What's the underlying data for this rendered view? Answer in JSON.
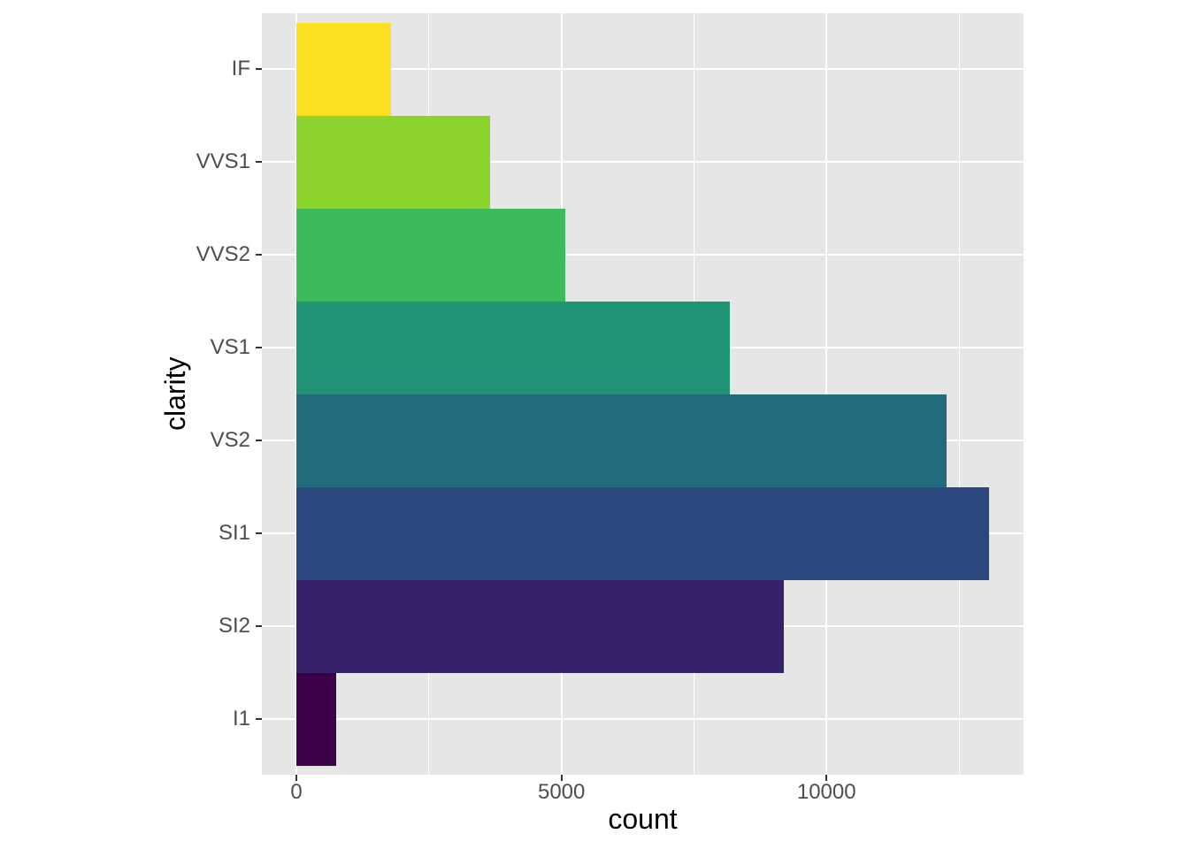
{
  "chart_data": {
    "type": "bar",
    "orientation": "horizontal",
    "title": "",
    "xlabel": "count",
    "ylabel": "clarity",
    "categories": [
      "IF",
      "VVS1",
      "VVS2",
      "VS1",
      "VS2",
      "SI1",
      "SI2",
      "I1"
    ],
    "values": [
      1790,
      3655,
      5066,
      8171,
      12258,
      13065,
      9194,
      741
    ],
    "bar_colors": [
      "#FBE122",
      "#8CD32C",
      "#3EB95B",
      "#1F9374",
      "#216C7C",
      "#2A487D",
      "#36216B",
      "#3B0248"
    ],
    "x_major_ticks": [
      0,
      5000,
      10000
    ],
    "x_tick_labels": [
      "0",
      "5000",
      "10000"
    ],
    "x_minor_ticks": [
      2500,
      7500,
      12500
    ],
    "xlim": [
      -653,
      13718
    ],
    "legend": "none",
    "grid": "on",
    "panel_bg": "#E6E6E6",
    "gridline_color": "#FFFFFF",
    "axis_text_color": "#4D4D4D",
    "axis_title_color": "#000000",
    "tick_color": "#333333"
  }
}
